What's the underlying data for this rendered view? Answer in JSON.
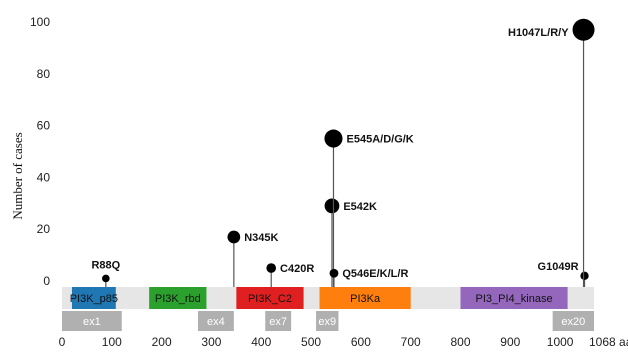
{
  "chart_data": {
    "type": "lollipop",
    "title": "",
    "xlabel": "",
    "ylabel": "Number of cases",
    "x_unit": "aa",
    "xlim": [
      0,
      1068
    ],
    "ylim": [
      0,
      100
    ],
    "x_ticks": [
      0,
      100,
      200,
      300,
      400,
      500,
      600,
      700,
      800,
      900,
      1000
    ],
    "x_end_tick": 1068,
    "x_end_label": "1068 aa",
    "y_ticks": [
      0,
      20,
      40,
      60,
      80,
      100
    ],
    "mutations": [
      {
        "label": "R88Q",
        "position": 88,
        "count": 1
      },
      {
        "label": "N345K",
        "position": 345,
        "count": 17
      },
      {
        "label": "C420R",
        "position": 420,
        "count": 5
      },
      {
        "label": "E542K",
        "position": 542,
        "count": 29
      },
      {
        "label": "E545A/D/G/K",
        "position": 545,
        "count": 55
      },
      {
        "label": "Q546E/K/L/R",
        "position": 546,
        "count": 3
      },
      {
        "label": "G1049R",
        "position": 1049,
        "count": 2
      },
      {
        "label": "H1047L/R/Y",
        "position": 1047,
        "count": 97
      }
    ],
    "domains": [
      {
        "name": "PI3K_p85",
        "start": 20,
        "end": 108,
        "color": "#1f77b4"
      },
      {
        "name": "PI3K_rbd",
        "start": 175,
        "end": 290,
        "color": "#2ca02c"
      },
      {
        "name": "PI3K_C2",
        "start": 350,
        "end": 485,
        "color": "#e02020"
      },
      {
        "name": "PI3Ka",
        "start": 517,
        "end": 700,
        "color": "#ff7f0e"
      },
      {
        "name": "PI3_PI4_kinase",
        "start": 800,
        "end": 1015,
        "color": "#9467bd"
      }
    ],
    "exons": [
      {
        "name": "ex1",
        "start": 0,
        "end": 120
      },
      {
        "name": "ex4",
        "start": 273,
        "end": 345
      },
      {
        "name": "ex7",
        "start": 408,
        "end": 460
      },
      {
        "name": "ex9",
        "start": 510,
        "end": 555
      },
      {
        "name": "ex20",
        "start": 985,
        "end": 1068
      }
    ],
    "colors": {
      "protein_bar": "#e6e6e6",
      "exon": "#b0b0b0",
      "lollipop": "#000000",
      "stem": "#555555"
    }
  }
}
